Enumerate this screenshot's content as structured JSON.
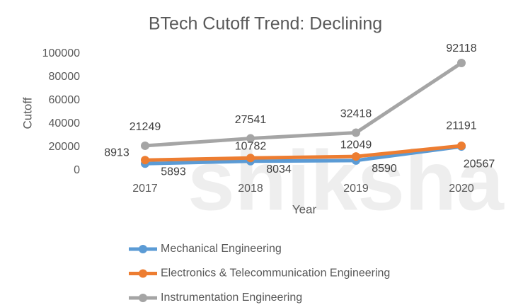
{
  "chart_data": {
    "type": "line",
    "title": "BTech Cutoff Trend: Declining",
    "watermark": "shiksha",
    "x_label": "Year",
    "y_label": "Cutoff",
    "categories": [
      "2017",
      "2018",
      "2019",
      "2020"
    ],
    "series": [
      {
        "name": "Mechanical Engineering",
        "color": "#5b9bd5",
        "values": [
          5893,
          8034,
          8590,
          20567
        ]
      },
      {
        "name": "Electronics & Telecommunication Engineering",
        "color": "#ed7d31",
        "values": [
          8913,
          10782,
          12049,
          21191
        ]
      },
      {
        "name": "Instrumentation Engineering",
        "color": "#a5a5a5",
        "values": [
          21249,
          27541,
          32418,
          92118
        ]
      }
    ],
    "ylim": [
      0,
      100000
    ],
    "yticks": [
      0,
      20000,
      40000,
      60000,
      80000,
      100000
    ],
    "grid": false,
    "legend": "bottom"
  }
}
